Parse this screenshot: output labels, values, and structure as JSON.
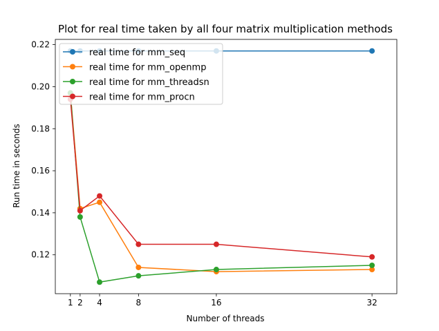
{
  "chart_data": {
    "type": "line",
    "title": "Plot for real time taken by all four matrix multiplication methods",
    "xlabel": "Number of threads",
    "ylabel": "Run time in seconds",
    "x": [
      1,
      2,
      4,
      8,
      16,
      32
    ],
    "xticks": [
      1,
      2,
      4,
      8,
      16,
      32
    ],
    "yticks": [
      0.12,
      0.14,
      0.16,
      0.18,
      0.2,
      0.22
    ],
    "ytick_labels": [
      "0.12",
      "0.14",
      "0.16",
      "0.18",
      "0.20",
      "0.22"
    ],
    "xlim": [
      -0.55,
      34.55
    ],
    "ylim": [
      0.1015,
      0.2225
    ],
    "grid": false,
    "legend_position": "top-left",
    "series": [
      {
        "name": "real time for mm_seq",
        "color": "#1f77b4",
        "values": [
          0.217,
          0.217,
          0.217,
          0.217,
          0.217,
          0.217
        ]
      },
      {
        "name": "real time for mm_openmp",
        "color": "#ff7f0e",
        "values": [
          0.197,
          0.142,
          0.145,
          0.114,
          0.112,
          0.113
        ]
      },
      {
        "name": "real time for mm_threadsn",
        "color": "#2ca02c",
        "values": [
          0.197,
          0.138,
          0.107,
          0.11,
          0.113,
          0.115
        ]
      },
      {
        "name": "real time for mm_procn",
        "color": "#d62728",
        "values": [
          0.194,
          0.141,
          0.148,
          0.125,
          0.125,
          0.119
        ]
      }
    ]
  }
}
